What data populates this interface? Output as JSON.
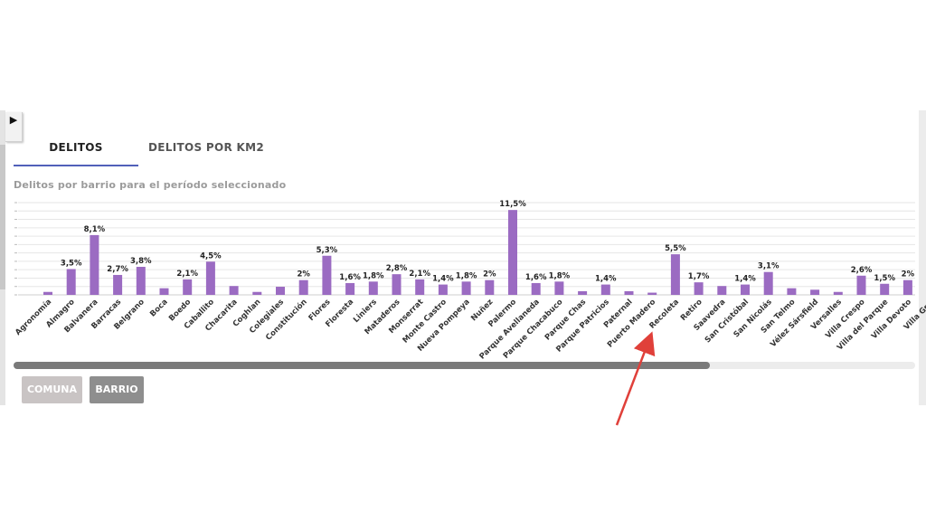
{
  "tabs": {
    "delitos": "DELITOS",
    "km2": "DELITOS POR KM2"
  },
  "play_icon": "▶",
  "subtitle": "Delitos por barrio para el período seleccionado",
  "buttons": {
    "comuna": "COMUNA",
    "barrio": "BARRIO"
  },
  "colors": {
    "bar": "#9b6bc2",
    "tab_underline": "#5160b9",
    "arrow": "#e0403a"
  },
  "chart_data": {
    "type": "bar",
    "title": "",
    "xlabel": "",
    "ylabel": "",
    "ylim": [
      0,
      12.5
    ],
    "grid": true,
    "categories": [
      "Agronomía",
      "Almagro",
      "Balvanera",
      "Barracas",
      "Belgrano",
      "Boca",
      "Boedo",
      "Caballito",
      "Chacarita",
      "Coghlan",
      "Colegiales",
      "Constitución",
      "Flores",
      "Floresta",
      "Liniers",
      "Mataderos",
      "Monserrat",
      "Monte Castro",
      "Nueva Pompeya",
      "Nuñez",
      "Palermo",
      "Parque Avellaneda",
      "Parque Chacabuco",
      "Parque Chas",
      "Parque Patricios",
      "Paternal",
      "Puerto Madero",
      "Recoleta",
      "Retiro",
      "Saavedra",
      "San Cristóbal",
      "San Nicolás",
      "San Telmo",
      "Vélez Sársfield",
      "Versalles",
      "Villa Crespo",
      "Villa del Parque",
      "Villa Devoto",
      "Villa Gral"
    ],
    "values": [
      0.4,
      3.5,
      8.1,
      2.7,
      3.8,
      0.9,
      2.1,
      4.5,
      1.2,
      0.4,
      1.1,
      2.0,
      5.3,
      1.6,
      1.8,
      2.8,
      2.1,
      1.4,
      1.8,
      2.0,
      11.5,
      1.6,
      1.8,
      0.5,
      1.4,
      0.5,
      0.3,
      5.5,
      1.7,
      1.2,
      1.4,
      3.1,
      0.9,
      0.7,
      0.4,
      2.6,
      1.5,
      2.0,
      null
    ],
    "labels": [
      "",
      "3,5%",
      "8,1%",
      "2,7%",
      "3,8%",
      "",
      "2,1%",
      "4,5%",
      "",
      "",
      "",
      "2%",
      "5,3%",
      "1,6%",
      "1,8%",
      "2,8%",
      "2,1%",
      "1,4%",
      "1,8%",
      "2%",
      "11,5%",
      "1,6%",
      "1,8%",
      "",
      "1,4%",
      "",
      "",
      "5,5%",
      "1,7%",
      "",
      "1,4%",
      "3,1%",
      "",
      "",
      "",
      "2,6%",
      "1,5%",
      "2%",
      ""
    ]
  }
}
